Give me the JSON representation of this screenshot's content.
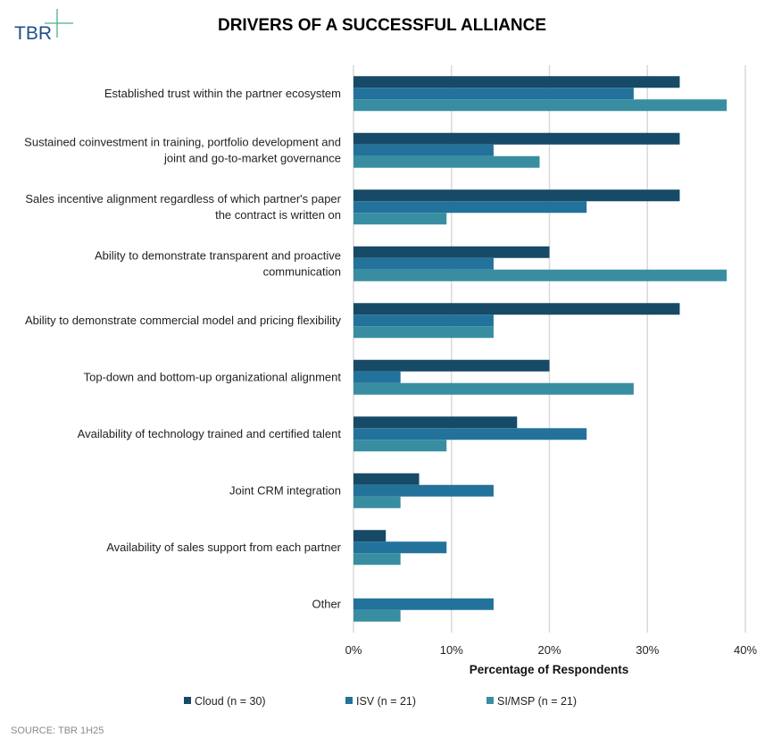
{
  "logo": {
    "text": "TBR"
  },
  "source": "SOURCE: TBR 1H25",
  "chart_data": {
    "type": "bar",
    "orientation": "horizontal",
    "title": "DRIVERS OF A SUCCESSFUL ALLIANCE",
    "xlabel": "Percentage of Respondents",
    "ylabel": "",
    "xlim": [
      0,
      40
    ],
    "x_ticks": [
      "0%",
      "10%",
      "20%",
      "30%",
      "40%"
    ],
    "grid": "vertical",
    "legend_position": "bottom",
    "categories": [
      [
        "Established trust within the partner ecosystem"
      ],
      [
        "Sustained coinvestment in training, portfolio development and",
        "joint and go-to-market governance"
      ],
      [
        "Sales incentive alignment regardless of which partner's paper",
        "the contract is written on"
      ],
      [
        "Ability to demonstrate transparent and proactive",
        "communication"
      ],
      [
        "Ability to demonstrate commercial model and pricing flexibility"
      ],
      [
        "Top-down and bottom-up organizational alignment"
      ],
      [
        "Availability of technology trained and certified talent"
      ],
      [
        "Joint CRM integration"
      ],
      [
        "Availability of sales support from each partner"
      ],
      [
        "Other"
      ]
    ],
    "series": [
      {
        "name": "Cloud (n = 30)",
        "color": "#164a66",
        "values": [
          33.3,
          33.3,
          33.3,
          20.0,
          33.3,
          20.0,
          16.7,
          6.7,
          3.3,
          0
        ]
      },
      {
        "name": "ISV (n = 21)",
        "color": "#22729c",
        "values": [
          28.6,
          14.3,
          23.8,
          14.3,
          14.3,
          4.8,
          23.8,
          14.3,
          9.5,
          14.3
        ]
      },
      {
        "name": "SI/MSP (n = 21)",
        "color": "#388ea0",
        "values": [
          38.1,
          19.0,
          9.5,
          38.1,
          14.3,
          28.6,
          9.5,
          4.8,
          4.8,
          4.8
        ]
      }
    ]
  }
}
